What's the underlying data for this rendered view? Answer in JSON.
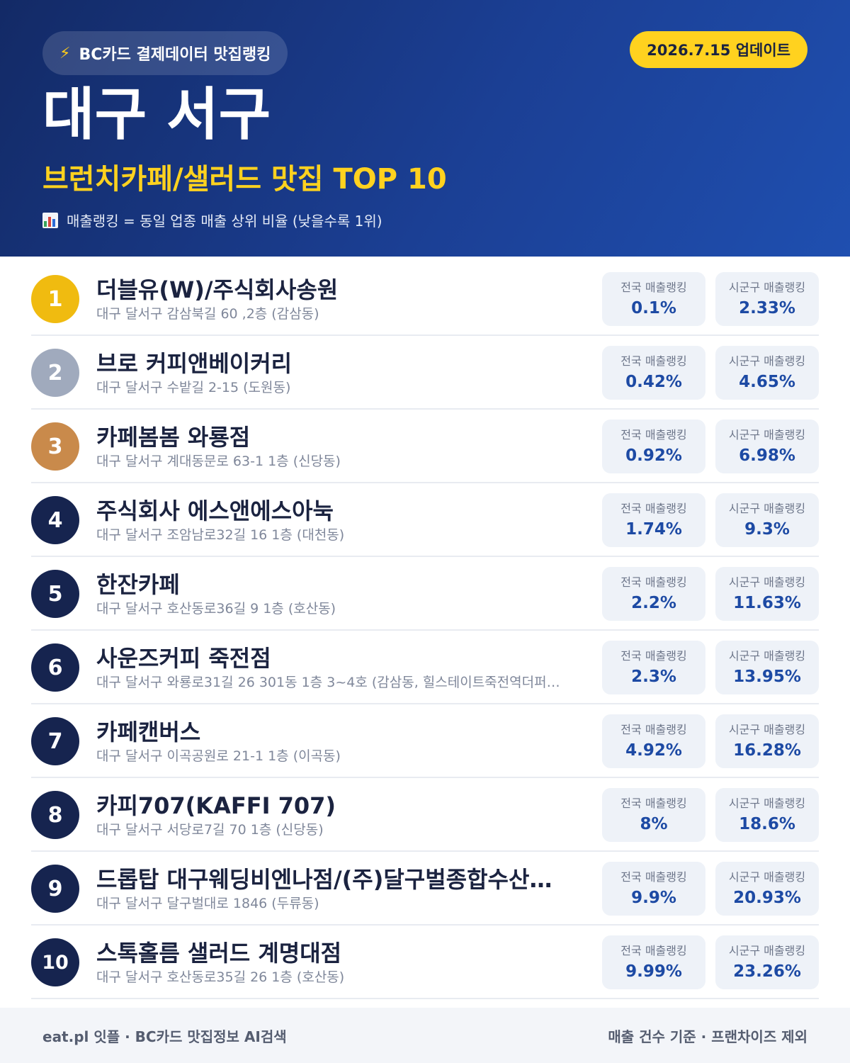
{
  "header": {
    "source_label": "BC카드 결제데이터 맛집랭킹",
    "update_label": "2026.7.15 업데이트",
    "region": "대구 서구",
    "category_title": "브런치카페/샐러드 맛집 TOP 10",
    "legend_note": "매출랭킹 = 동일 업종 매출 상위 비율 (낮을수록 1위)"
  },
  "labels": {
    "national": "전국 매출랭킹",
    "local": "시군구 매출랭킹"
  },
  "items": [
    {
      "rank": "1",
      "name": "더블유(W)/주식회사송원",
      "address": "대구 달서구 감삼북길 60 ,2층 (감삼동)",
      "national": "0.1%",
      "local": "2.33%"
    },
    {
      "rank": "2",
      "name": "브로 커피앤베이커리",
      "address": "대구 달서구 수밭길 2-15 (도원동)",
      "national": "0.42%",
      "local": "4.65%"
    },
    {
      "rank": "3",
      "name": "카페봄봄 와룡점",
      "address": "대구 달서구 계대동문로 63-1 1층 (신당동)",
      "national": "0.92%",
      "local": "6.98%"
    },
    {
      "rank": "4",
      "name": "주식회사 에스앤에스아눅",
      "address": "대구 달서구 조암남로32길 16 1층 (대천동)",
      "national": "1.74%",
      "local": "9.3%"
    },
    {
      "rank": "5",
      "name": "한잔카페",
      "address": "대구 달서구 호산동로36길 9 1층 (호산동)",
      "national": "2.2%",
      "local": "11.63%"
    },
    {
      "rank": "6",
      "name": "사운즈커피 죽전점",
      "address": "대구 달서구 와룡로31길 26 301동 1층 3~4호 (감삼동, 힐스테이트죽전역더퍼…",
      "national": "2.3%",
      "local": "13.95%"
    },
    {
      "rank": "7",
      "name": "카페캔버스",
      "address": "대구 달서구 이곡공원로 21-1 1층 (이곡동)",
      "national": "4.92%",
      "local": "16.28%"
    },
    {
      "rank": "8",
      "name": "카피707(KAFFI 707)",
      "address": "대구 달서구 서당로7길 70 1층 (신당동)",
      "national": "8%",
      "local": "18.6%"
    },
    {
      "rank": "9",
      "name": "드롭탑 대구웨딩비엔나점/(주)달구벌종합수산…",
      "address": "대구 달서구 달구벌대로 1846 (두류동)",
      "national": "9.9%",
      "local": "20.93%"
    },
    {
      "rank": "10",
      "name": "스톡홀름 샐러드 계명대점",
      "address": "대구 달서구 호산동로35길 26 1층 (호산동)",
      "national": "9.99%",
      "local": "23.26%"
    }
  ],
  "footer": {
    "left": "eat.pl 잇플 · BC카드 맛집정보 AI검색",
    "right": "매출 건수 기준 · 프랜차이즈 제외"
  },
  "colors": {
    "header_start": "#132a66",
    "header_end": "#1f4fb0",
    "accent_yellow": "#ffd21f",
    "rank_gold": "#f0bb10",
    "rank_silver": "#a0aabd",
    "rank_bronze": "#c98a4b",
    "rank_default": "#16244f",
    "value_blue": "#1d4aa4"
  }
}
